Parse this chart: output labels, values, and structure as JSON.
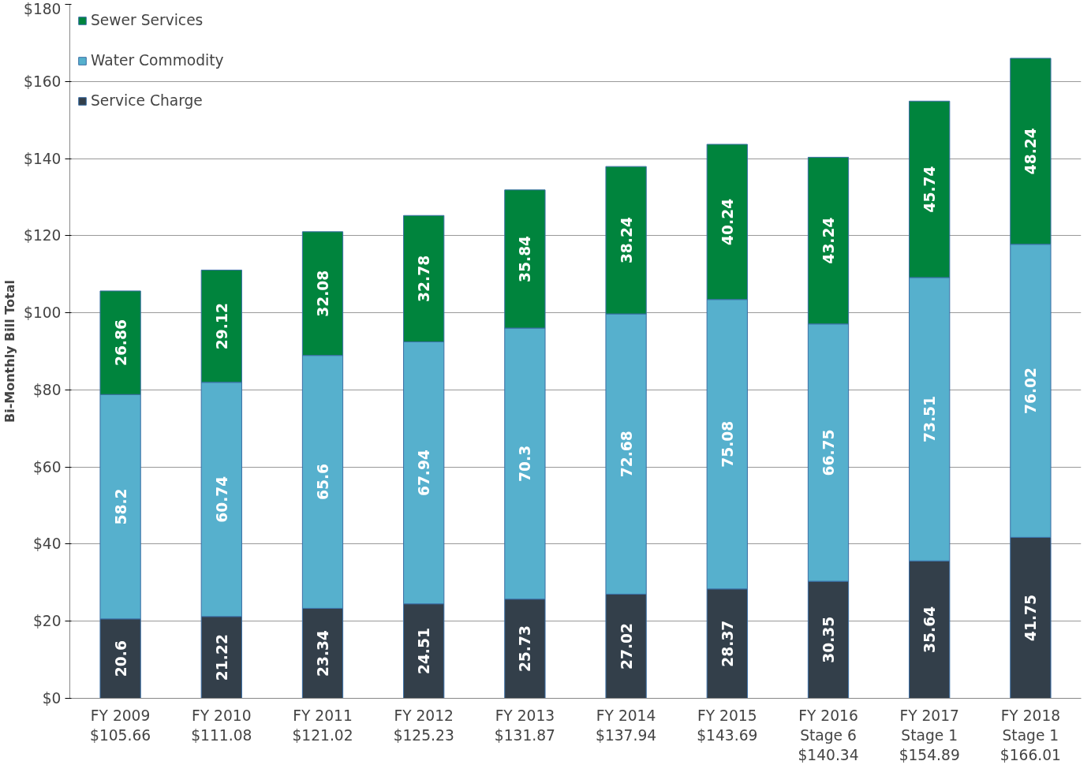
{
  "chart_data": {
    "type": "bar",
    "stacked": true,
    "ylabel": "Bi-Monthly Bill Total",
    "categories": [
      "FY 2009\n$105.66",
      "FY 2010\n$111.08",
      "FY 2011\n$121.02",
      "FY 2012\n$125.23",
      "FY 2013\n$131.87",
      "FY 2014\n$137.94",
      "FY 2015\n$143.69",
      "FY 2016\nStage 6\n$140.34",
      "FY 2017\nStage 1\n$154.89",
      "FY 2018\nStage 1\n$166.01"
    ],
    "series": [
      {
        "name": "Service Charge",
        "color": "#333f4a",
        "values": [
          20.6,
          21.22,
          23.34,
          24.51,
          25.73,
          27.02,
          28.37,
          30.35,
          35.64,
          41.75
        ]
      },
      {
        "name": "Water Commodity",
        "color": "#56b0cd",
        "values": [
          58.2,
          60.74,
          65.6,
          67.94,
          70.3,
          72.68,
          75.08,
          66.75,
          73.51,
          76.02
        ]
      },
      {
        "name": "Sewer Services",
        "color": "#00843d",
        "values": [
          26.86,
          29.12,
          32.08,
          32.78,
          35.84,
          38.24,
          40.24,
          43.24,
          45.74,
          48.24
        ]
      }
    ],
    "ylim": [
      0,
      180
    ],
    "yticks": [
      {
        "value": 0,
        "label": "$0"
      },
      {
        "value": 20,
        "label": "$20"
      },
      {
        "value": 40,
        "label": "$40"
      },
      {
        "value": 60,
        "label": "$60"
      },
      {
        "value": 80,
        "label": "$80"
      },
      {
        "value": 100,
        "label": "$100"
      },
      {
        "value": 120,
        "label": "$120"
      },
      {
        "value": 140,
        "label": "$140"
      },
      {
        "value": 160,
        "label": "$160"
      },
      {
        "value": 180,
        "label": "$180"
      }
    ],
    "grid": "y",
    "legend": "top left",
    "data_labels": true
  }
}
